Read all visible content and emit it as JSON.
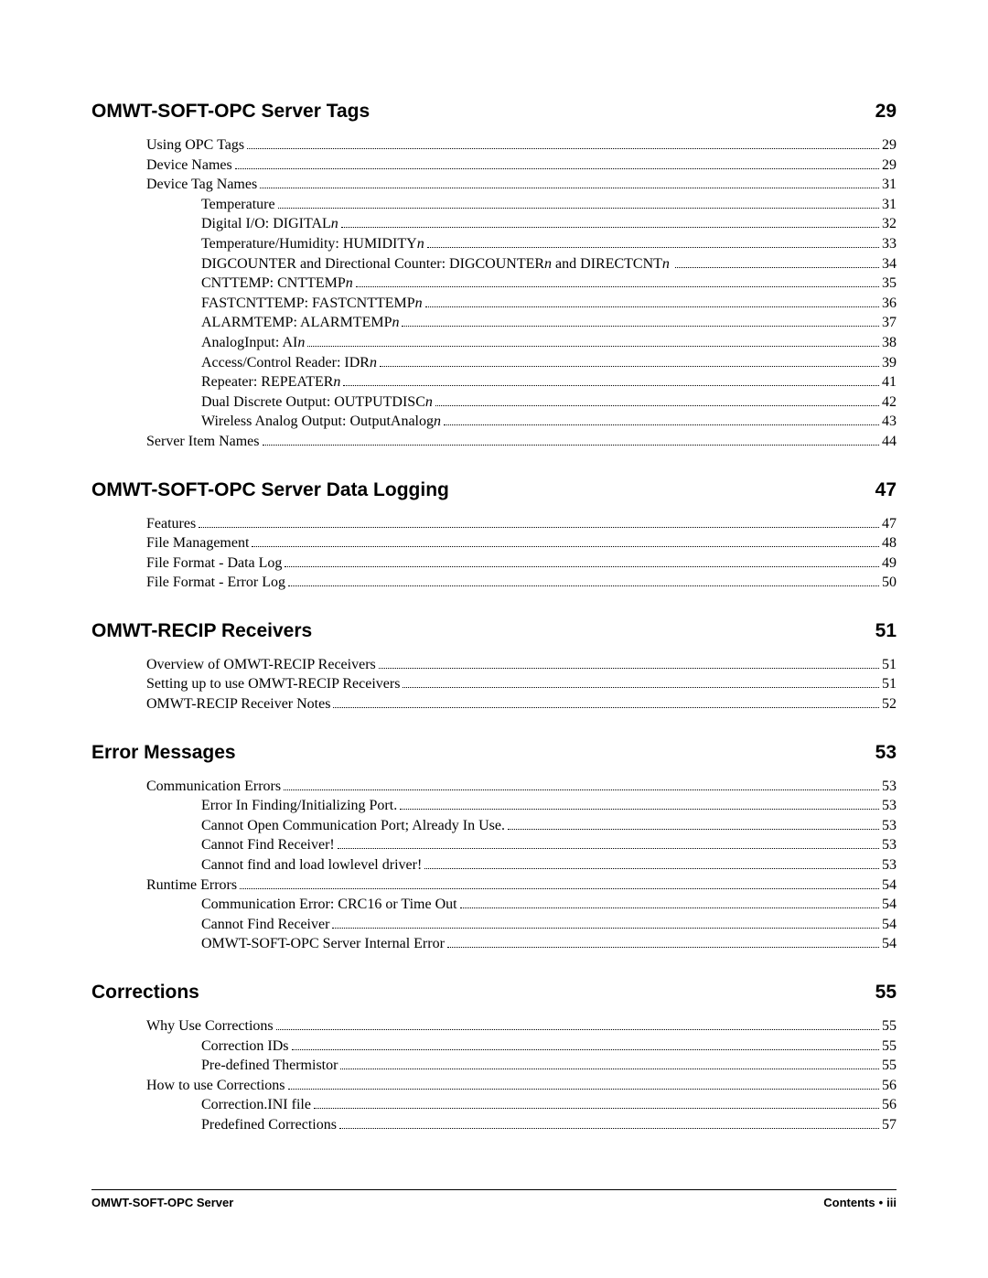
{
  "sections": [
    {
      "title": "OMWT-SOFT-OPC Server Tags",
      "page": "29",
      "entries": [
        {
          "level": 1,
          "label": "Using OPC Tags",
          "page": "29"
        },
        {
          "level": 1,
          "label": "Device Names",
          "page": "29"
        },
        {
          "level": 1,
          "label": "Device Tag Names",
          "page": "31"
        },
        {
          "level": 2,
          "label": "Temperature",
          "page": "31"
        },
        {
          "level": 2,
          "label_html": "Digital I/O: DIGITAL<i>n</i>",
          "page": "32"
        },
        {
          "level": 2,
          "label_html": "Temperature/Humidity: HUMIDITY<i>n</i>",
          "page": "33"
        },
        {
          "level": 2,
          "label_html": "DIGCOUNTER and Directional Counter: DIGCOUNTER<i>n</i> and DIRECTCNT<i>n</i>",
          "page": "34",
          "spaced_dots": true
        },
        {
          "level": 2,
          "label_html": "CNTTEMP: CNTTEMP<i>n</i>",
          "page": "35"
        },
        {
          "level": 2,
          "label_html": "FASTCNTTEMP: FASTCNTTEMP<i>n</i>",
          "page": "36"
        },
        {
          "level": 2,
          "label_html": "ALARMTEMP: ALARMTEMP<i>n</i>",
          "page": "37"
        },
        {
          "level": 2,
          "label_html": "AnalogInput: AI<i>n</i>",
          "page": "38"
        },
        {
          "level": 2,
          "label_html": "Access/Control Reader: IDR<i>n</i>",
          "page": "39"
        },
        {
          "level": 2,
          "label_html": "Repeater: REPEATER<i>n</i>",
          "page": "41"
        },
        {
          "level": 2,
          "label_html": "Dual Discrete Output: OUTPUTDISC<i>n</i>",
          "page": "42"
        },
        {
          "level": 2,
          "label_html": "Wireless Analog Output: OutputAnalog<i>n</i>",
          "page": "43"
        },
        {
          "level": 1,
          "label": "Server Item Names",
          "page": "44"
        }
      ]
    },
    {
      "title": "OMWT-SOFT-OPC Server Data Logging",
      "page": "47",
      "entries": [
        {
          "level": 1,
          "label": "Features",
          "page": "47"
        },
        {
          "level": 1,
          "label": "File Management",
          "page": "48"
        },
        {
          "level": 1,
          "label": "File Format - Data Log",
          "page": "49"
        },
        {
          "level": 1,
          "label": "File Format - Error Log",
          "page": "50"
        }
      ]
    },
    {
      "title": "OMWT-RECIP Receivers",
      "page": "51",
      "entries": [
        {
          "level": 1,
          "label": "Overview of OMWT-RECIP Receivers",
          "page": "51"
        },
        {
          "level": 1,
          "label": "Setting up to use OMWT-RECIP Receivers",
          "page": "51"
        },
        {
          "level": 1,
          "label": "OMWT-RECIP Receiver Notes",
          "page": "52"
        }
      ]
    },
    {
      "title": "Error Messages",
      "page": "53",
      "entries": [
        {
          "level": 1,
          "label": "Communication Errors",
          "page": "53"
        },
        {
          "level": 2,
          "label": "Error In Finding/Initializing Port.",
          "page": "53"
        },
        {
          "level": 2,
          "label": "Cannot Open Communication Port; Already In Use.",
          "page": "53"
        },
        {
          "level": 2,
          "label": "Cannot Find Receiver!",
          "page": "53"
        },
        {
          "level": 2,
          "label": "Cannot find and load lowlevel driver!",
          "page": "53"
        },
        {
          "level": 1,
          "label": "Runtime Errors",
          "page": "54"
        },
        {
          "level": 2,
          "label": "Communication Error: CRC16 or Time Out",
          "page": "54"
        },
        {
          "level": 2,
          "label": "Cannot Find Receiver",
          "page": "54"
        },
        {
          "level": 2,
          "label": "OMWT-SOFT-OPC Server Internal Error",
          "page": "54"
        }
      ]
    },
    {
      "title": "Corrections",
      "page": "55",
      "entries": [
        {
          "level": 1,
          "label": "Why Use Corrections",
          "page": "55"
        },
        {
          "level": 2,
          "label": "Correction IDs",
          "page": "55"
        },
        {
          "level": 2,
          "label": "Pre-defined Thermistor",
          "page": "55"
        },
        {
          "level": 1,
          "label": "How to use Corrections",
          "page": "56"
        },
        {
          "level": 2,
          "label": "Correction.INI file",
          "page": "56"
        },
        {
          "level": 2,
          "label": "Predefined Corrections",
          "page": "57"
        }
      ]
    }
  ],
  "footer": {
    "left": "OMWT-SOFT-OPC Server",
    "right_label": "Contents",
    "right_page": "iii"
  }
}
